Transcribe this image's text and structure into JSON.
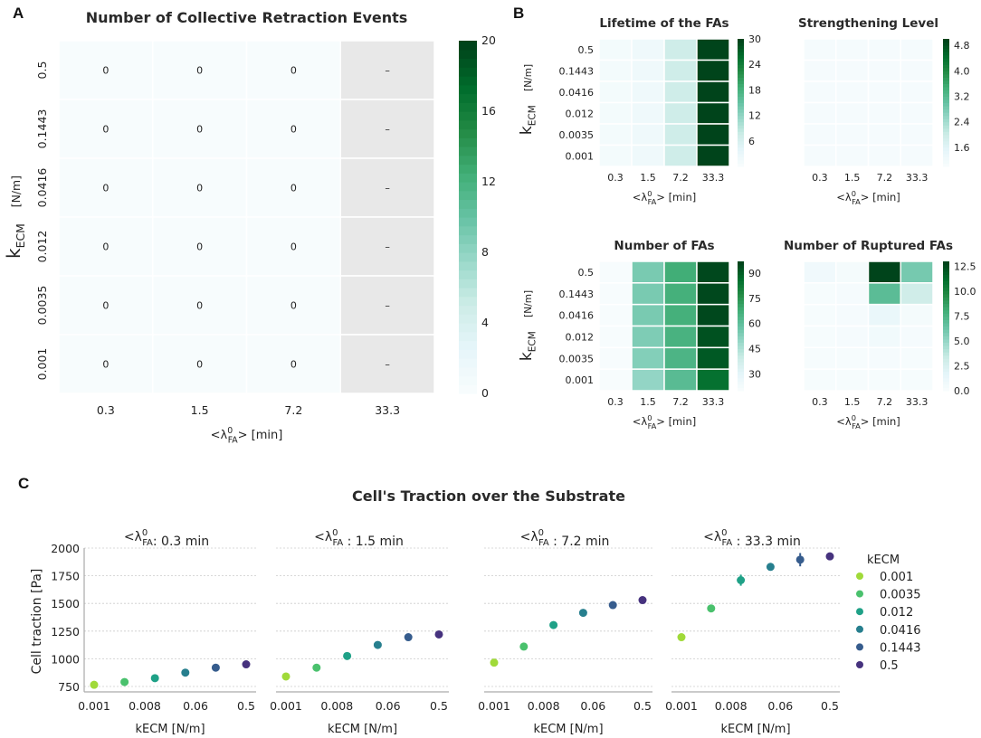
{
  "panel_labels": {
    "a": "A",
    "b": "B",
    "c": "C"
  },
  "axis_text": {
    "lambda_prefix": "<λ",
    "lambda_sup": "0",
    "lambda_sub": "FA",
    "lambda_suffix": "> [min]",
    "k": "k",
    "k_sub": "ECM",
    "k_unit": "[N/m]",
    "missing_mark": "–"
  },
  "colormap": [
    "#f7fcfd",
    "#e5f5f9",
    "#ccece6",
    "#99d8c9",
    "#66c2a4",
    "#41ae76",
    "#238b45",
    "#006d2c",
    "#00441b"
  ],
  "missing_color": "#e8e8e8",
  "chart_data": [
    {
      "id": "collective-retraction",
      "type": "heatmap",
      "title": "Number of Collective Retraction Events",
      "rows": [
        "0.5",
        "0.1443",
        "0.0416",
        "0.012",
        "0.0035",
        "0.001"
      ],
      "cols": [
        "0.3",
        "1.5",
        "7.2",
        "33.3"
      ],
      "values": [
        [
          0,
          0,
          0,
          null
        ],
        [
          0,
          0,
          0,
          null
        ],
        [
          0,
          0,
          0,
          null
        ],
        [
          0,
          0,
          0,
          null
        ],
        [
          0,
          0,
          0,
          null
        ],
        [
          0,
          0,
          0,
          null
        ]
      ],
      "cell_labels": [
        [
          "0",
          "0",
          "0",
          "–"
        ],
        [
          "0",
          "0",
          "0",
          "–"
        ],
        [
          "0",
          "0",
          "0",
          "–"
        ],
        [
          "0",
          "0",
          "0",
          "–"
        ],
        [
          "0",
          "0",
          "0",
          "–"
        ],
        [
          "0",
          "0",
          "0",
          "–"
        ]
      ],
      "vmin": 0,
      "vmax": 20,
      "colorbar_ticks": [
        "0",
        "4",
        "8",
        "12",
        "16",
        "20"
      ],
      "xlabel": "<λ0FA> [min]",
      "ylabel": "kECM [N/m]"
    },
    {
      "id": "lifetime",
      "type": "heatmap",
      "title": "Lifetime of the FAs",
      "rows": [
        "0.5",
        "0.1443",
        "0.0416",
        "0.012",
        "0.0035",
        "0.001"
      ],
      "cols": [
        "0.3",
        "1.5",
        "7.2",
        "33.3"
      ],
      "values": [
        [
          0.8,
          1.6,
          7,
          30
        ],
        [
          0.8,
          1.6,
          7,
          30
        ],
        [
          0.8,
          1.6,
          7,
          30
        ],
        [
          0.8,
          1.6,
          7,
          30
        ],
        [
          0.8,
          1.6,
          7,
          30
        ],
        [
          0.8,
          1.6,
          7,
          30
        ]
      ],
      "vmin": 0,
      "vmax": 30,
      "colorbar_ticks": [
        "6",
        "12",
        "18",
        "24",
        "30"
      ],
      "xlabel": "<λ0FA> [min]",
      "ylabel": "kECM [N/m]"
    },
    {
      "id": "strengthening",
      "type": "heatmap",
      "title": "Strengthening Level",
      "rows": [
        "0.5",
        "0.1443",
        "0.0416",
        "0.012",
        "0.0035",
        "0.001"
      ],
      "cols": [
        "0.3",
        "1.5",
        "7.2",
        "33.3"
      ],
      "values": [
        [
          1.05,
          1.05,
          1.05,
          1.05
        ],
        [
          1.05,
          1.05,
          1.05,
          1.05
        ],
        [
          1.05,
          1.05,
          1.05,
          1.05
        ],
        [
          1.05,
          1.05,
          1.05,
          1.05
        ],
        [
          1.05,
          1.05,
          1.05,
          1.05
        ],
        [
          1.05,
          1.05,
          1.05,
          1.05
        ]
      ],
      "vmin": 1.0,
      "vmax": 5.0,
      "colorbar_ticks": [
        "1.6",
        "2.4",
        "3.2",
        "4.0",
        "4.8"
      ],
      "xlabel": "<λ0FA> [min]"
    },
    {
      "id": "number-fas",
      "type": "heatmap",
      "title": "Number of FAs",
      "rows": [
        "0.5",
        "0.1443",
        "0.0416",
        "0.012",
        "0.0035",
        "0.001"
      ],
      "cols": [
        "0.3",
        "1.5",
        "7.2",
        "33.3"
      ],
      "values": [
        [
          20,
          55,
          68,
          96
        ],
        [
          20,
          55,
          67,
          96
        ],
        [
          20,
          55,
          67,
          96
        ],
        [
          20,
          54,
          66,
          94
        ],
        [
          20,
          53,
          65,
          92
        ],
        [
          20,
          50,
          62,
          86
        ]
      ],
      "vmin": 20,
      "vmax": 97,
      "colorbar_ticks": [
        "30",
        "45",
        "60",
        "75",
        "90"
      ],
      "xlabel": "<λ0FA> [min]",
      "ylabel": "kECM [N/m]"
    },
    {
      "id": "ruptured-fas",
      "type": "heatmap",
      "title": "Number of Ruptured FAs",
      "rows": [
        "0.5",
        "0.1443",
        "0.0416",
        "0.012",
        "0.0035",
        "0.001"
      ],
      "cols": [
        "0.3",
        "1.5",
        "7.2",
        "33.3"
      ],
      "values": [
        [
          0.6,
          0.3,
          13,
          6
        ],
        [
          0.1,
          0.2,
          7,
          3
        ],
        [
          0.1,
          0.2,
          1.2,
          0.3
        ],
        [
          0.1,
          0.2,
          0.5,
          0.2
        ],
        [
          0.1,
          0.1,
          0.2,
          0.1
        ],
        [
          0.1,
          0.1,
          0.1,
          0.1
        ]
      ],
      "vmin": 0,
      "vmax": 13,
      "colorbar_ticks": [
        "0.0",
        "2.5",
        "5.0",
        "7.5",
        "10.0",
        "12.5"
      ],
      "xlabel": "<λ0FA> [min]"
    },
    {
      "id": "cell-traction",
      "type": "scatter",
      "title": "Cell's Traction over the Substrate",
      "ylabel": "Cell traction [Pa]",
      "xlabel": "kECM [N/m]",
      "ylim": [
        700,
        2000
      ],
      "yticks": [
        "750",
        "1000",
        "1250",
        "1500",
        "1750",
        "2000"
      ],
      "xticks": [
        "0.001",
        "0.008",
        "0.06",
        "0.5"
      ],
      "legend_title": "kECM",
      "legend_position": "right",
      "categories": [
        "0.001",
        "0.0035",
        "0.012",
        "0.0416",
        "0.1443",
        "0.5"
      ],
      "colors": [
        "#a0da39",
        "#4ac16d",
        "#1fa187",
        "#277f8e",
        "#365c8d",
        "#46327e"
      ],
      "panels": [
        {
          "title_value": ": 0.3 min",
          "values": [
            765,
            790,
            825,
            875,
            920,
            950
          ],
          "errors": [
            0,
            0,
            0,
            0,
            0,
            0
          ]
        },
        {
          "title_value": " : 1.5 min",
          "values": [
            840,
            920,
            1025,
            1125,
            1195,
            1220
          ],
          "errors": [
            0,
            0,
            0,
            0,
            0,
            0
          ]
        },
        {
          "title_value": " : 7.2 min",
          "values": [
            965,
            1110,
            1305,
            1415,
            1485,
            1530
          ],
          "errors": [
            0,
            0,
            0,
            0,
            0,
            0
          ]
        },
        {
          "title_value": " : 33.3 min",
          "values": [
            1195,
            1455,
            1710,
            1830,
            1895,
            1925
          ],
          "errors": [
            0,
            0,
            50,
            0,
            60,
            10
          ]
        }
      ]
    }
  ]
}
